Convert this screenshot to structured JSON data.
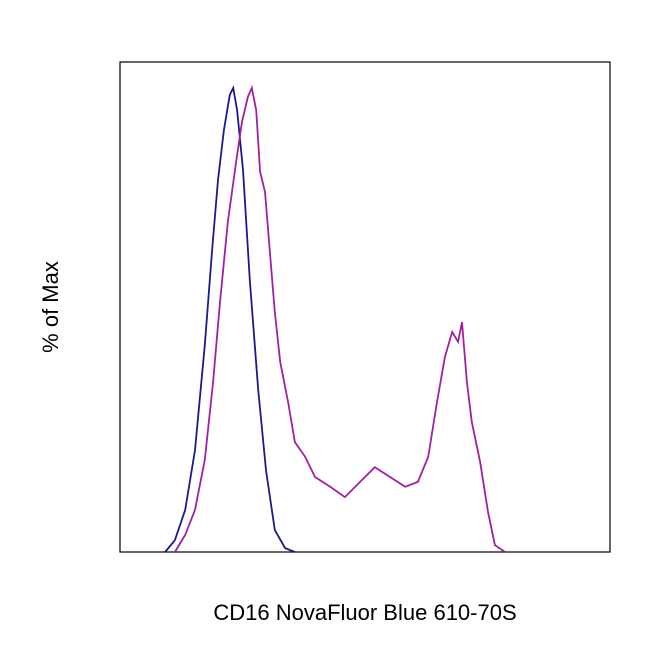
{
  "chart_data": {
    "type": "line",
    "xlabel": "CD16 NovaFluor Blue 610-70S",
    "ylabel": "% of Max",
    "xlim": [
      0,
      100
    ],
    "ylim": [
      0,
      100
    ],
    "series": [
      {
        "color": "#1a1a8c",
        "x": [
          9.2,
          11.2,
          13.3,
          15.3,
          17.3,
          18.8,
          20,
          21.2,
          22.4,
          23.1,
          23.9,
          25.1,
          26.5,
          28.2,
          29.8,
          31.6,
          33.7,
          35.7
        ],
        "values": [
          0,
          2.4,
          8.6,
          20.8,
          42.2,
          61.6,
          75.9,
          86.1,
          93.3,
          94.7,
          90.2,
          78,
          55.5,
          33.1,
          16.7,
          4.5,
          0.8,
          0
        ]
      },
      {
        "color": "#a020a0",
        "x": [
          11.2,
          13.3,
          15.3,
          17.3,
          19,
          20.4,
          22,
          23.7,
          24.9,
          26.1,
          26.9,
          27.8,
          28.6,
          29.6,
          30.6,
          31.6,
          32.7,
          34.3,
          35.7,
          37.8,
          39.8,
          42.9,
          45.9,
          49,
          52,
          55.1,
          58.2,
          60.8,
          62.9,
          64.7,
          66.3,
          67.8,
          69,
          69.8,
          70.8,
          71.8,
          73.5,
          75.1,
          76.5,
          78.6
        ],
        "values": [
          0,
          3.5,
          8.6,
          18.8,
          34.7,
          51,
          67.3,
          79.6,
          87.8,
          92.9,
          94.7,
          90.2,
          77.6,
          73.5,
          61.2,
          49,
          38.8,
          30.6,
          22.4,
          19.4,
          15.3,
          13.3,
          11.2,
          14.3,
          17.3,
          15.3,
          13.3,
          14.3,
          19.4,
          30.6,
          39.8,
          44.9,
          42.9,
          46.9,
          34.7,
          26.5,
          18.4,
          8.2,
          1.4,
          0
        ]
      }
    ]
  }
}
